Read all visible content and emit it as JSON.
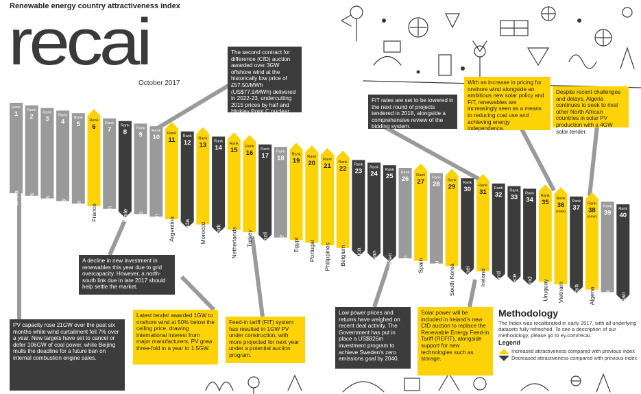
{
  "header": {
    "subtitle": "Renewable energy country attractiveness index",
    "logo": "recai",
    "date": "October 2017"
  },
  "colors": {
    "increased": "#fdd308",
    "decreased": "#3c3c3c",
    "unchanged": "#9a9a9a",
    "text_light": "#ffffff",
    "text_dark": "#222222"
  },
  "chart_data": {
    "type": "bar",
    "rank_label": "Rank",
    "countries": [
      {
        "rank": 1,
        "country": "China",
        "trend": "same"
      },
      {
        "rank": 2,
        "country": "India",
        "trend": "same"
      },
      {
        "rank": 3,
        "country": "United States",
        "trend": "same"
      },
      {
        "rank": 4,
        "country": "Germany",
        "trend": "same"
      },
      {
        "rank": 5,
        "country": "Australia",
        "trend": "same"
      },
      {
        "rank": 6,
        "country": "France",
        "trend": "up"
      },
      {
        "rank": 7,
        "country": "Japan",
        "trend": "same"
      },
      {
        "rank": 8,
        "country": "Chile",
        "trend": "down"
      },
      {
        "rank": 9,
        "country": "Mexico",
        "trend": "same"
      },
      {
        "rank": 10,
        "country": "United Kingdom",
        "trend": "same"
      },
      {
        "rank": 11,
        "country": "Argentina",
        "trend": "up"
      },
      {
        "rank": 12,
        "country": "Canada",
        "trend": "down"
      },
      {
        "rank": 13,
        "country": "Morocco",
        "trend": "up"
      },
      {
        "rank": 14,
        "country": "Denmark",
        "trend": "down"
      },
      {
        "rank": 15,
        "country": "Netherlands",
        "trend": "up"
      },
      {
        "rank": 16,
        "country": "Turkey",
        "trend": "up"
      },
      {
        "rank": 17,
        "country": "Brazil",
        "trend": "down"
      },
      {
        "rank": 18,
        "country": "Italy",
        "trend": "same"
      },
      {
        "rank": 19,
        "country": "Egypt",
        "trend": "up"
      },
      {
        "rank": 20,
        "country": "Portugal",
        "trend": "up"
      },
      {
        "rank": 21,
        "country": "Philippines",
        "trend": "up"
      },
      {
        "rank": 22,
        "country": "Belgium",
        "trend": "up"
      },
      {
        "rank": 23,
        "country": "South Africa",
        "trend": "down"
      },
      {
        "rank": 24,
        "country": "Jordan",
        "trend": "down"
      },
      {
        "rank": 25,
        "country": "Sweden",
        "trend": "down"
      },
      {
        "rank": 26,
        "country": "Pakistan",
        "trend": "same"
      },
      {
        "rank": 27,
        "country": "Spain",
        "trend": "up"
      },
      {
        "rank": 28,
        "country": "Peru",
        "trend": "same"
      },
      {
        "rank": 29,
        "country": "South Korea",
        "trend": "up"
      },
      {
        "rank": 30,
        "country": "Israel",
        "trend": "down"
      },
      {
        "rank": 31,
        "country": "Ireland",
        "trend": "up"
      },
      {
        "rank": 32,
        "country": "Finland",
        "trend": "down"
      },
      {
        "rank": 33,
        "country": "Greece",
        "trend": "down"
      },
      {
        "rank": 34,
        "country": "Thailand",
        "trend": "down"
      },
      {
        "rank": 35,
        "country": "Uruguay",
        "trend": "up"
      },
      {
        "rank": 36,
        "country": "Vietnam",
        "trend": "up",
        "note": "(new)"
      },
      {
        "rank": 37,
        "country": "Kenya",
        "trend": "down"
      },
      {
        "rank": 38,
        "country": "Algeria",
        "trend": "up",
        "note": "(new)"
      },
      {
        "rank": 39,
        "country": "Dominican Republic",
        "trend": "same"
      },
      {
        "rank": 40,
        "country": "Kazakhstan",
        "trend": "down"
      }
    ]
  },
  "callouts": {
    "uk": "The second contract for difference (CfD) auction awarded over 3GW offshore wind at the historically low price of £57.50/MWh (US$77.9/MWh) delivered in 2022-23, undercutting 2015 prices by half and Hinkley Point C nuclear CfD by almost 40%.",
    "denmark": "FiT rates are set to be lowered in the next round of projects tendered in 2018, alongside a comprehensive review of the bidding system.",
    "uruguay": "With an increase in pricing for onshore wind alongside an ambitious new solar policy and FiT, renewables are increasingly seen as a means to reducing coal use and achieving energy independence.",
    "algeria": "Despite recent challenges and delays, Algeria continues to seek to rival other North African countries in solar PV production with a 4GW solar tender.",
    "chile": "A decline in new investment in renewables this year due to grid overcapacity. However, a north-south link due in late 2017 should help settle the market.",
    "china": "PV capacity rose 21GW over the past six months while wind curtailment fell 7% over a year. New targets have set to cancel or defer 106GW of coal power, while Beijing mulls the deadline for a future ban on internal combustion engine sales.",
    "argentina": "Latest tender awarded 1GW to onshore wind at 50% below the ceiling price, drawing international interest from major manufacturers. PV grew three-fold in a year to 1.5GW.",
    "egypt": "Feed-in tariff (FIT) system has resulted in 1GW PV under construction, with more projected for next year under a potential auction program.",
    "sweden": "Low power prices and returns have weighed on recent deal activity. The Government has put in place a US$826m investment program to achieve Sweden's zero emissions goal by 2040.",
    "ireland": "Solar power will be included in Ireland's new CfD auction to replace the Renewable Energy Feed-in Tariff (REFIT), alongside support for new technologies such as storage."
  },
  "methodology": {
    "title": "Methodology",
    "text": "The Index was recalibrated in early 2017, with all underlying datasets fully refreshed. To see a description of our methodology, please go to ey.com/recai.",
    "legend_title": "Legend",
    "legend_increased": "Increased attractiveness compared with previous index",
    "legend_decreased": "Decreased attractiveness compared with previous index"
  }
}
